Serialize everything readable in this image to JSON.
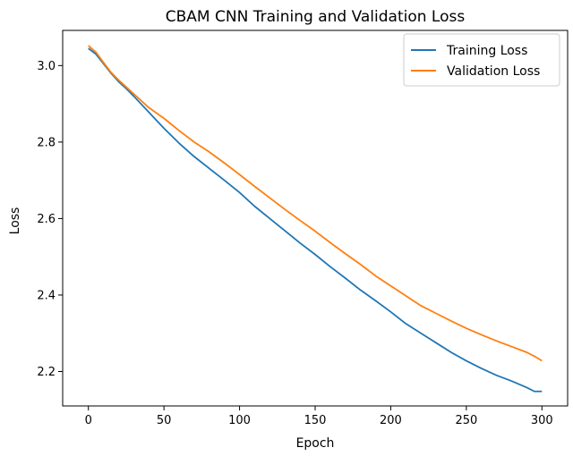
{
  "chart_data": {
    "type": "line",
    "title": "CBAM CNN Training and Validation Loss",
    "xlabel": "Epoch",
    "ylabel": "Loss",
    "xlim": [
      -17,
      317
    ],
    "ylim": [
      2.11,
      3.092
    ],
    "xticks": [
      0,
      50,
      100,
      150,
      200,
      250,
      300
    ],
    "xtick_labels": [
      "0",
      "50",
      "100",
      "150",
      "200",
      "250",
      "300"
    ],
    "yticks": [
      2.2,
      2.4,
      2.6,
      2.8,
      3.0
    ],
    "ytick_labels": [
      "2.2",
      "2.4",
      "2.6",
      "2.8",
      "3.0"
    ],
    "grid": false,
    "legend_position": "top-right",
    "series": [
      {
        "name": "Training Loss",
        "color": "#1f77b4",
        "x": [
          0,
          5,
          10,
          15,
          20,
          25,
          30,
          40,
          50,
          60,
          70,
          80,
          90,
          100,
          110,
          120,
          130,
          140,
          150,
          160,
          170,
          180,
          190,
          200,
          210,
          220,
          230,
          240,
          250,
          260,
          270,
          280,
          290,
          295,
          300
        ],
        "y": [
          3.045,
          3.03,
          3.005,
          2.98,
          2.958,
          2.94,
          2.92,
          2.878,
          2.836,
          2.797,
          2.762,
          2.731,
          2.7,
          2.668,
          2.632,
          2.6,
          2.568,
          2.536,
          2.506,
          2.474,
          2.444,
          2.413,
          2.385,
          2.356,
          2.325,
          2.3,
          2.275,
          2.25,
          2.228,
          2.208,
          2.19,
          2.175,
          2.158,
          2.148,
          2.148
        ]
      },
      {
        "name": "Validation Loss",
        "color": "#ff7f0e",
        "x": [
          0,
          5,
          10,
          15,
          20,
          25,
          30,
          40,
          50,
          60,
          70,
          80,
          90,
          100,
          110,
          120,
          130,
          140,
          150,
          160,
          170,
          180,
          190,
          200,
          210,
          220,
          230,
          240,
          250,
          260,
          270,
          280,
          290,
          295,
          300
        ],
        "y": [
          3.052,
          3.035,
          3.008,
          2.982,
          2.962,
          2.944,
          2.926,
          2.89,
          2.862,
          2.83,
          2.8,
          2.774,
          2.745,
          2.715,
          2.684,
          2.654,
          2.624,
          2.595,
          2.567,
          2.537,
          2.508,
          2.48,
          2.45,
          2.424,
          2.398,
          2.372,
          2.352,
          2.332,
          2.313,
          2.296,
          2.28,
          2.265,
          2.25,
          2.24,
          2.228
        ]
      }
    ]
  }
}
